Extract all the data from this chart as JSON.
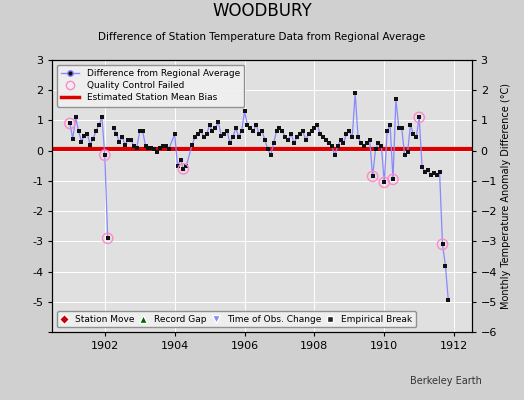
{
  "title": "WOODBURY",
  "subtitle": "Difference of Station Temperature Data from Regional Average",
  "ylabel_right": "Monthly Temperature Anomaly Difference (°C)",
  "watermark": "Berkeley Earth",
  "bias_value": 0.05,
  "ylim": [
    -6,
    3
  ],
  "xlim": [
    1900.5,
    1912.5
  ],
  "xticks": [
    1902,
    1904,
    1906,
    1908,
    1910,
    1912
  ],
  "yticks": [
    -6,
    -5,
    -4,
    -3,
    -2,
    -1,
    0,
    1,
    2,
    3
  ],
  "line_color": "#8888ff",
  "marker_color": "#111111",
  "bias_color": "#dd0000",
  "qc_color": "#ff88cc",
  "background_color": "#e0e0e0",
  "grid_color": "#ffffff",
  "time_series": [
    [
      1901.0,
      0.9
    ],
    [
      1901.083,
      0.4
    ],
    [
      1901.167,
      1.1
    ],
    [
      1901.25,
      0.65
    ],
    [
      1901.333,
      0.3
    ],
    [
      1901.417,
      0.5
    ],
    [
      1901.5,
      0.55
    ],
    [
      1901.583,
      0.2
    ],
    [
      1901.667,
      0.4
    ],
    [
      1901.75,
      0.65
    ],
    [
      1901.833,
      0.85
    ],
    [
      1901.917,
      1.1
    ],
    [
      1902.0,
      -0.15
    ],
    [
      1902.083,
      -2.9
    ],
    [
      1902.25,
      0.75
    ],
    [
      1902.333,
      0.55
    ],
    [
      1902.417,
      0.3
    ],
    [
      1902.5,
      0.45
    ],
    [
      1902.583,
      0.2
    ],
    [
      1902.667,
      0.35
    ],
    [
      1902.75,
      0.35
    ],
    [
      1902.833,
      0.15
    ],
    [
      1902.917,
      0.1
    ],
    [
      1903.0,
      0.65
    ],
    [
      1903.083,
      0.65
    ],
    [
      1903.167,
      0.15
    ],
    [
      1903.25,
      0.1
    ],
    [
      1903.333,
      0.1
    ],
    [
      1903.417,
      0.05
    ],
    [
      1903.5,
      -0.05
    ],
    [
      1903.583,
      0.1
    ],
    [
      1903.667,
      0.15
    ],
    [
      1903.75,
      0.15
    ],
    [
      1903.833,
      0.05
    ],
    [
      1904.0,
      0.55
    ],
    [
      1904.083,
      -0.5
    ],
    [
      1904.167,
      -0.3
    ],
    [
      1904.25,
      -0.6
    ],
    [
      1904.333,
      -0.5
    ],
    [
      1904.5,
      0.2
    ],
    [
      1904.583,
      0.45
    ],
    [
      1904.667,
      0.55
    ],
    [
      1904.75,
      0.65
    ],
    [
      1904.833,
      0.45
    ],
    [
      1904.917,
      0.55
    ],
    [
      1905.0,
      0.85
    ],
    [
      1905.083,
      0.65
    ],
    [
      1905.167,
      0.75
    ],
    [
      1905.25,
      0.95
    ],
    [
      1905.333,
      0.5
    ],
    [
      1905.417,
      0.55
    ],
    [
      1905.5,
      0.65
    ],
    [
      1905.583,
      0.25
    ],
    [
      1905.667,
      0.45
    ],
    [
      1905.75,
      0.75
    ],
    [
      1905.833,
      0.45
    ],
    [
      1905.917,
      0.65
    ],
    [
      1906.0,
      1.3
    ],
    [
      1906.083,
      0.85
    ],
    [
      1906.167,
      0.75
    ],
    [
      1906.25,
      0.65
    ],
    [
      1906.333,
      0.85
    ],
    [
      1906.417,
      0.55
    ],
    [
      1906.5,
      0.65
    ],
    [
      1906.583,
      0.35
    ],
    [
      1906.667,
      0.05
    ],
    [
      1906.75,
      -0.15
    ],
    [
      1906.833,
      0.25
    ],
    [
      1906.917,
      0.65
    ],
    [
      1907.0,
      0.75
    ],
    [
      1907.083,
      0.65
    ],
    [
      1907.167,
      0.45
    ],
    [
      1907.25,
      0.35
    ],
    [
      1907.333,
      0.55
    ],
    [
      1907.417,
      0.25
    ],
    [
      1907.5,
      0.45
    ],
    [
      1907.583,
      0.55
    ],
    [
      1907.667,
      0.65
    ],
    [
      1907.75,
      0.35
    ],
    [
      1907.833,
      0.55
    ],
    [
      1907.917,
      0.65
    ],
    [
      1908.0,
      0.75
    ],
    [
      1908.083,
      0.85
    ],
    [
      1908.167,
      0.55
    ],
    [
      1908.25,
      0.45
    ],
    [
      1908.333,
      0.35
    ],
    [
      1908.417,
      0.25
    ],
    [
      1908.5,
      0.15
    ],
    [
      1908.583,
      -0.15
    ],
    [
      1908.667,
      0.15
    ],
    [
      1908.75,
      0.35
    ],
    [
      1908.833,
      0.25
    ],
    [
      1908.917,
      0.55
    ],
    [
      1909.0,
      0.65
    ],
    [
      1909.083,
      0.45
    ],
    [
      1909.167,
      1.9
    ],
    [
      1909.25,
      0.45
    ],
    [
      1909.333,
      0.25
    ],
    [
      1909.417,
      0.15
    ],
    [
      1909.5,
      0.25
    ],
    [
      1909.583,
      0.35
    ],
    [
      1909.667,
      -0.85
    ],
    [
      1909.75,
      0.05
    ],
    [
      1909.833,
      0.25
    ],
    [
      1909.917,
      0.15
    ],
    [
      1910.0,
      -1.05
    ],
    [
      1910.083,
      0.65
    ],
    [
      1910.167,
      0.85
    ],
    [
      1910.25,
      -0.95
    ],
    [
      1910.333,
      1.7
    ],
    [
      1910.417,
      0.75
    ],
    [
      1910.5,
      0.75
    ],
    [
      1910.583,
      -0.15
    ],
    [
      1910.667,
      -0.05
    ],
    [
      1910.75,
      0.85
    ],
    [
      1910.833,
      0.55
    ],
    [
      1910.917,
      0.45
    ],
    [
      1911.0,
      1.1
    ],
    [
      1911.083,
      -0.55
    ],
    [
      1911.167,
      -0.7
    ],
    [
      1911.25,
      -0.65
    ],
    [
      1911.333,
      -0.8
    ],
    [
      1911.417,
      -0.75
    ],
    [
      1911.5,
      -0.8
    ],
    [
      1911.583,
      -0.7
    ],
    [
      1911.667,
      -3.1
    ],
    [
      1911.75,
      -3.8
    ],
    [
      1911.833,
      -4.95
    ]
  ],
  "qc_failed": [
    [
      1901.0,
      0.9
    ],
    [
      1902.0,
      -0.15
    ],
    [
      1902.083,
      -2.9
    ],
    [
      1904.25,
      -0.6
    ],
    [
      1909.667,
      -0.85
    ],
    [
      1910.0,
      -1.05
    ],
    [
      1910.25,
      -0.95
    ],
    [
      1911.0,
      1.1
    ],
    [
      1911.667,
      -3.1
    ]
  ],
  "isolated_points": [
    [
      1911.75,
      -3.8
    ],
    [
      1911.833,
      -4.95
    ]
  ]
}
